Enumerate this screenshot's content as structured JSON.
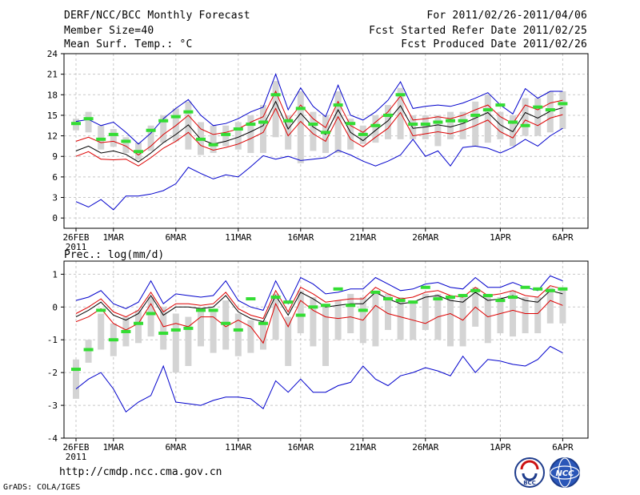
{
  "header": {
    "left1": "DERF/NCC/BCC Monthly Forecast",
    "left2": "Member Size=40",
    "left3": "Mean Surf. Temp.: °C",
    "right1": "For 2011/02/26-2011/04/06",
    "right2": "Fcst Started Refer Date 2011/02/25",
    "right3": "Fcst Produced Date 2011/02/26"
  },
  "footer": {
    "url": "http://cmdp.ncc.cma.gov.cn",
    "credit": "GrADS: COLA/IGES",
    "logo1_text": "BCC",
    "logo2_text": "NCC"
  },
  "colors": {
    "grid": "#c8c8c8",
    "box": "#d4d4d4",
    "obs": "#33dd33",
    "mean": "#000000",
    "spread": "#dd0000",
    "extreme": "#0000cc"
  },
  "chart_data": [
    {
      "type": "line",
      "title": "Mean Surf. Temp.: °C",
      "x_tick_labels": [
        "26FEB",
        "1MAR",
        "6MAR",
        "11MAR",
        "16MAR",
        "21MAR",
        "26MAR",
        "1APR",
        "6APR"
      ],
      "x_year_label": "2011",
      "x_tick_day_index": [
        0,
        3,
        8,
        13,
        18,
        23,
        28,
        34,
        39
      ],
      "ylim": [
        -1.5,
        24
      ],
      "yticks": [
        0,
        3,
        6,
        9,
        12,
        15,
        18,
        21,
        24
      ],
      "grid": true,
      "series": [
        {
          "name": "max",
          "color": "#0000cc",
          "values": [
            14.1,
            14.4,
            13.5,
            14.0,
            12.5,
            10.8,
            12.4,
            14.5,
            16.0,
            17.3,
            15.0,
            13.5,
            13.8,
            14.5,
            15.5,
            16.2,
            21.0,
            15.8,
            19.0,
            16.3,
            14.8,
            19.4,
            15.0,
            14.3,
            15.5,
            17.2,
            19.9,
            16.0,
            16.3,
            16.5,
            16.3,
            16.8,
            17.5,
            18.3,
            16.5,
            15.2,
            18.9,
            17.5,
            18.5,
            18.5
          ]
        },
        {
          "name": "upper",
          "color": "#dd0000",
          "values": [
            11.2,
            11.8,
            11.0,
            11.2,
            10.5,
            9.2,
            10.5,
            12.2,
            13.5,
            15.0,
            13.0,
            12.2,
            12.5,
            13.0,
            14.0,
            14.8,
            18.5,
            14.2,
            16.5,
            14.5,
            13.2,
            17.0,
            13.5,
            12.5,
            14.0,
            15.5,
            17.8,
            14.3,
            14.5,
            14.8,
            14.5,
            15.0,
            15.8,
            16.5,
            14.8,
            13.8,
            16.5,
            15.8,
            16.8,
            17.2
          ]
        },
        {
          "name": "mean",
          "color": "#000000",
          "values": [
            9.8,
            10.5,
            9.5,
            9.8,
            9.3,
            8.2,
            9.5,
            11.0,
            12.2,
            13.6,
            11.5,
            10.8,
            11.2,
            11.8,
            12.6,
            13.5,
            17.0,
            13.0,
            15.3,
            13.3,
            12.2,
            15.8,
            12.5,
            11.3,
            12.8,
            14.2,
            16.4,
            13.1,
            13.3,
            13.6,
            13.3,
            13.8,
            14.6,
            15.4,
            13.6,
            12.6,
            15.4,
            14.6,
            15.6,
            16.1
          ]
        },
        {
          "name": "lower",
          "color": "#dd0000",
          "values": [
            9.0,
            9.7,
            8.6,
            8.5,
            8.6,
            7.6,
            8.8,
            10.2,
            11.2,
            12.5,
            10.6,
            9.9,
            10.3,
            10.8,
            11.6,
            12.5,
            16.0,
            12.0,
            14.1,
            12.3,
            11.2,
            14.8,
            11.5,
            10.4,
            11.8,
            13.1,
            15.4,
            12.0,
            12.3,
            12.6,
            12.3,
            12.8,
            13.5,
            14.3,
            12.6,
            11.7,
            14.3,
            13.5,
            14.6,
            15.1
          ]
        },
        {
          "name": "min",
          "color": "#0000cc",
          "values": [
            2.4,
            1.6,
            2.7,
            1.2,
            3.2,
            3.2,
            3.5,
            4.0,
            5.0,
            7.4,
            6.5,
            5.7,
            6.3,
            6.0,
            7.5,
            9.1,
            8.6,
            9.0,
            8.4,
            8.6,
            8.8,
            9.9,
            9.2,
            8.3,
            7.6,
            8.3,
            9.2,
            11.5,
            9.0,
            9.8,
            7.6,
            10.3,
            10.5,
            10.2,
            9.5,
            10.3,
            11.5,
            10.5,
            12.0,
            13.1
          ]
        }
      ],
      "box_low": [
        12.8,
        12.5,
        10.0,
        10.4,
        9.5,
        8.5,
        9.8,
        11.0,
        11.2,
        10.0,
        9.2,
        9.5,
        10.5,
        10.0,
        9.5,
        9.5,
        11.8,
        10.0,
        8.0,
        9.8,
        9.5,
        9.5,
        10.0,
        10.8,
        11.0,
        11.5,
        11.5,
        11.5,
        11.5,
        10.5,
        11.5,
        11.5,
        10.5,
        11.0,
        11.5,
        10.5,
        12.0,
        12.0,
        12.5,
        13.0
      ],
      "box_high": [
        14.5,
        15.5,
        13.5,
        13.0,
        11.8,
        11.0,
        13.5,
        15.0,
        16.0,
        17.0,
        14.0,
        13.5,
        13.5,
        14.0,
        15.0,
        16.5,
        20.0,
        15.0,
        18.5,
        15.5,
        15.0,
        18.5,
        14.5,
        13.5,
        15.0,
        16.5,
        19.0,
        15.0,
        15.0,
        15.0,
        15.5,
        15.5,
        17.0,
        18.0,
        15.5,
        15.0,
        17.5,
        17.5,
        18.5,
        18.5
      ],
      "observed": [
        13.8,
        14.5,
        11.5,
        12.2,
        11.2,
        9.7,
        12.8,
        14.2,
        14.8,
        15.5,
        11.5,
        10.7,
        12.2,
        13.0,
        13.7,
        14.0,
        18.0,
        14.2,
        16.0,
        13.7,
        12.5,
        16.5,
        13.8,
        12.2,
        13.5,
        15.0,
        18.0,
        13.7,
        13.7,
        14.0,
        14.2,
        14.2,
        15.0,
        15.8,
        16.5,
        14.0,
        13.5,
        16.2,
        15.8,
        16.7
      ]
    },
    {
      "type": "line",
      "title": "Prec.: log(mm/d)",
      "x_tick_labels": [
        "26FEB",
        "1MAR",
        "6MAR",
        "11MAR",
        "16MAR",
        "21MAR",
        "26MAR",
        "1APR",
        "6APR"
      ],
      "x_year_label": "2011",
      "x_tick_day_index": [
        0,
        3,
        8,
        13,
        18,
        23,
        28,
        34,
        39
      ],
      "ylim": [
        -4,
        1.4
      ],
      "yticks": [
        -4,
        -3,
        -2,
        -1,
        0,
        1
      ],
      "grid": true,
      "series": [
        {
          "name": "max",
          "color": "#0000cc",
          "values": [
            0.2,
            0.3,
            0.5,
            0.1,
            -0.05,
            0.15,
            0.8,
            0.1,
            0.4,
            0.35,
            0.3,
            0.35,
            0.8,
            0.2,
            0.0,
            -0.1,
            0.8,
            0.1,
            0.9,
            0.7,
            0.4,
            0.45,
            0.55,
            0.55,
            0.9,
            0.7,
            0.5,
            0.55,
            0.7,
            0.75,
            0.6,
            0.55,
            0.9,
            0.6,
            0.6,
            0.75,
            0.6,
            0.5,
            0.95,
            0.8
          ]
        },
        {
          "name": "upper",
          "color": "#dd0000",
          "values": [
            -0.2,
            0.0,
            0.25,
            -0.15,
            -0.3,
            -0.1,
            0.45,
            -0.15,
            0.1,
            0.1,
            0.05,
            0.1,
            0.45,
            -0.05,
            -0.25,
            -0.35,
            0.5,
            -0.15,
            0.6,
            0.4,
            0.15,
            0.2,
            0.25,
            0.25,
            0.6,
            0.4,
            0.25,
            0.3,
            0.45,
            0.5,
            0.35,
            0.3,
            0.6,
            0.35,
            0.4,
            0.5,
            0.35,
            0.3,
            0.65,
            0.55
          ]
        },
        {
          "name": "mean",
          "color": "#000000",
          "values": [
            -0.3,
            -0.1,
            0.15,
            -0.25,
            -0.4,
            -0.2,
            0.35,
            -0.25,
            0.0,
            0.0,
            -0.05,
            0.0,
            0.35,
            -0.15,
            -0.35,
            -0.45,
            0.35,
            -0.25,
            0.45,
            0.25,
            0.0,
            0.05,
            0.1,
            0.1,
            0.45,
            0.25,
            0.1,
            0.15,
            0.3,
            0.35,
            0.2,
            0.15,
            0.45,
            0.2,
            0.25,
            0.35,
            0.2,
            0.15,
            0.5,
            0.4
          ]
        },
        {
          "name": "lower",
          "color": "#dd0000",
          "values": [
            -0.45,
            -0.3,
            -0.05,
            -0.5,
            -0.7,
            -0.5,
            0.1,
            -0.6,
            -0.5,
            -0.6,
            -0.3,
            -0.3,
            -0.6,
            -0.4,
            -0.6,
            -1.1,
            0.1,
            -0.6,
            0.2,
            -0.1,
            -0.3,
            -0.35,
            -0.3,
            -0.4,
            0.05,
            -0.2,
            -0.3,
            -0.4,
            -0.5,
            -0.3,
            -0.2,
            -0.4,
            0.0,
            -0.3,
            -0.2,
            -0.1,
            -0.2,
            -0.2,
            0.2,
            0.05
          ]
        },
        {
          "name": "min",
          "color": "#0000cc",
          "values": [
            -2.5,
            -2.2,
            -2.0,
            -2.5,
            -3.2,
            -2.9,
            -2.7,
            -1.8,
            -2.9,
            -2.95,
            -3.0,
            -2.85,
            -2.75,
            -2.75,
            -2.8,
            -3.1,
            -2.25,
            -2.6,
            -2.2,
            -2.6,
            -2.6,
            -2.4,
            -2.3,
            -1.8,
            -2.2,
            -2.4,
            -2.1,
            -2.0,
            -1.85,
            -1.95,
            -2.1,
            -1.5,
            -2.0,
            -1.6,
            -1.65,
            -1.75,
            -1.8,
            -1.6,
            -1.2,
            -1.4
          ]
        }
      ],
      "box_low": [
        -2.8,
        -1.7,
        -1.3,
        -1.5,
        -1.2,
        -1.1,
        -0.9,
        -1.3,
        -2.0,
        -1.8,
        -1.2,
        -1.4,
        -1.3,
        -1.5,
        -1.4,
        -1.3,
        -1.0,
        -1.8,
        -0.8,
        -1.2,
        -1.8,
        -1.0,
        -0.8,
        -1.1,
        -1.2,
        -0.7,
        -1.0,
        -1.0,
        -0.7,
        -1.0,
        -1.2,
        -1.2,
        -0.6,
        -1.1,
        -0.8,
        -0.9,
        -0.8,
        -0.8,
        -0.5,
        -0.5
      ],
      "box_high": [
        -1.6,
        -1.0,
        -0.2,
        -0.5,
        -0.3,
        -0.1,
        0.3,
        0.0,
        -0.2,
        -0.3,
        -0.1,
        -0.1,
        0.2,
        -0.2,
        -0.4,
        -0.4,
        0.4,
        -0.3,
        0.5,
        0.3,
        0.1,
        0.2,
        0.4,
        0.3,
        0.5,
        0.4,
        0.3,
        0.2,
        0.4,
        0.4,
        0.3,
        0.3,
        0.6,
        0.4,
        0.3,
        0.5,
        0.3,
        0.3,
        0.6,
        0.6
      ],
      "observed": [
        -1.9,
        -1.3,
        -0.1,
        -1.0,
        -0.75,
        -0.5,
        -0.2,
        -0.8,
        -0.7,
        -0.65,
        -0.1,
        -0.1,
        -0.5,
        -0.7,
        0.25,
        -0.5,
        0.3,
        0.15,
        -0.25,
        0.0,
        0.05,
        0.55,
        0.05,
        -0.1,
        0.45,
        0.25,
        0.2,
        0.15,
        0.6,
        0.25,
        0.3,
        0.35,
        0.5,
        0.35,
        0.2,
        0.3,
        0.6,
        0.55,
        0.5,
        0.55
      ]
    }
  ]
}
